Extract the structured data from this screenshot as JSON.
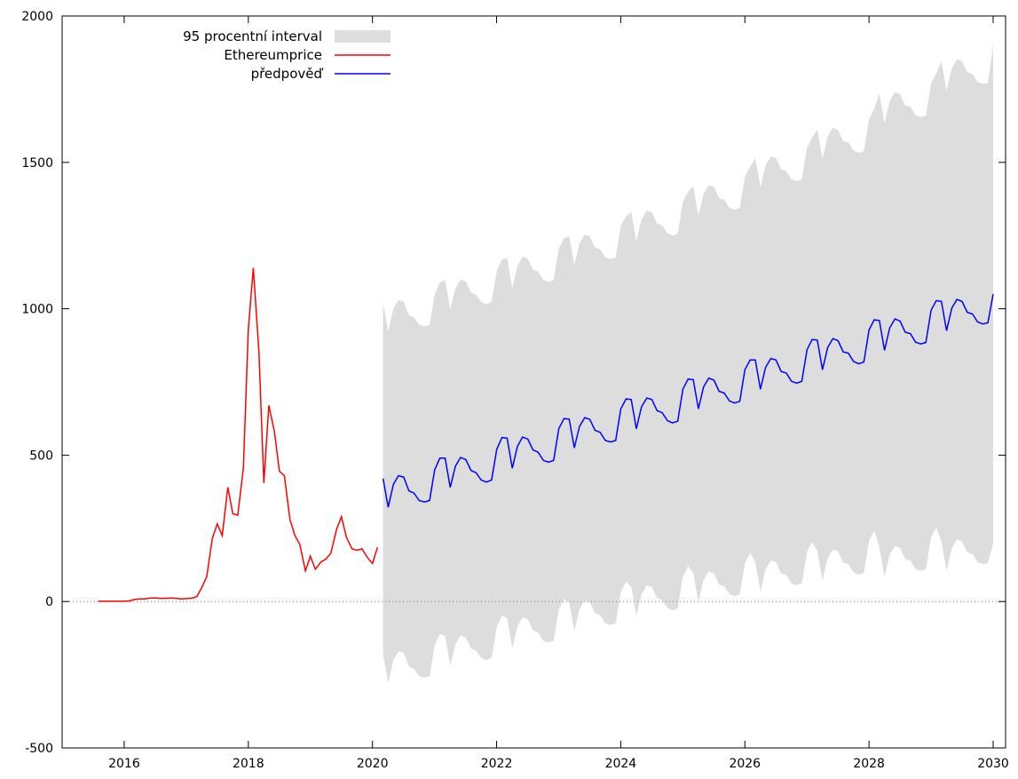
{
  "chart_data": {
    "type": "line",
    "title": "",
    "xlabel": "",
    "ylabel": "",
    "xlim": [
      2015.0,
      2030.2
    ],
    "ylim": [
      -500,
      2000
    ],
    "x_ticks": [
      2016,
      2018,
      2020,
      2022,
      2024,
      2026,
      2028,
      2030
    ],
    "y_ticks": [
      -500,
      0,
      500,
      1000,
      1500,
      2000
    ],
    "zero_line": true,
    "grid": false,
    "legend_position": "top-left",
    "legend": [
      {
        "label": "95 procentní interval",
        "kind": "band",
        "color": "#dddddd"
      },
      {
        "label": "Ethereumprice",
        "kind": "line",
        "color": "#ff0000"
      },
      {
        "label": "předpověď",
        "kind": "line",
        "color": "#0000ff"
      }
    ],
    "series": [
      {
        "name": "Ethereumprice",
        "color": "#ff0000",
        "points": [
          [
            2015.58,
            1
          ],
          [
            2015.75,
            1
          ],
          [
            2015.92,
            1
          ],
          [
            2016.0,
            1
          ],
          [
            2016.08,
            2
          ],
          [
            2016.17,
            7
          ],
          [
            2016.25,
            9
          ],
          [
            2016.33,
            9
          ],
          [
            2016.42,
            12
          ],
          [
            2016.5,
            12
          ],
          [
            2016.58,
            11
          ],
          [
            2016.67,
            11
          ],
          [
            2016.75,
            12
          ],
          [
            2016.83,
            11
          ],
          [
            2016.92,
            9
          ],
          [
            2017.0,
            10
          ],
          [
            2017.08,
            11
          ],
          [
            2017.17,
            17
          ],
          [
            2017.25,
            48
          ],
          [
            2017.33,
            85
          ],
          [
            2017.42,
            215
          ],
          [
            2017.5,
            265
          ],
          [
            2017.58,
            225
          ],
          [
            2017.67,
            390
          ],
          [
            2017.75,
            300
          ],
          [
            2017.83,
            295
          ],
          [
            2017.92,
            455
          ],
          [
            2018.0,
            930
          ],
          [
            2018.08,
            1140
          ],
          [
            2018.17,
            855
          ],
          [
            2018.25,
            405
          ],
          [
            2018.33,
            670
          ],
          [
            2018.42,
            580
          ],
          [
            2018.5,
            445
          ],
          [
            2018.58,
            430
          ],
          [
            2018.67,
            280
          ],
          [
            2018.75,
            225
          ],
          [
            2018.83,
            195
          ],
          [
            2018.92,
            105
          ],
          [
            2019.0,
            155
          ],
          [
            2019.08,
            110
          ],
          [
            2019.17,
            135
          ],
          [
            2019.25,
            145
          ],
          [
            2019.33,
            165
          ],
          [
            2019.42,
            245
          ],
          [
            2019.5,
            290
          ],
          [
            2019.58,
            220
          ],
          [
            2019.67,
            180
          ],
          [
            2019.75,
            175
          ],
          [
            2019.83,
            180
          ],
          [
            2019.92,
            150
          ],
          [
            2020.0,
            130
          ],
          [
            2020.08,
            185
          ]
        ]
      },
      {
        "name": "předpověď",
        "color": "#0000ff",
        "start": 2020.17,
        "step": 0.0833,
        "values": [
          420,
          322,
          400,
          430,
          425,
          378,
          370,
          345,
          340,
          345,
          450,
          490,
          490,
          390,
          462,
          492,
          485,
          448,
          440,
          415,
          408,
          415,
          520,
          560,
          558,
          455,
          530,
          562,
          555,
          518,
          510,
          482,
          476,
          482,
          590,
          625,
          623,
          525,
          598,
          628,
          622,
          585,
          578,
          550,
          545,
          550,
          658,
          692,
          690,
          590,
          665,
          695,
          690,
          652,
          645,
          618,
          610,
          616,
          725,
          760,
          758,
          658,
          733,
          763,
          756,
          718,
          712,
          685,
          678,
          684,
          792,
          825,
          825,
          725,
          800,
          830,
          825,
          786,
          780,
          752,
          746,
          752,
          860,
          895,
          893,
          792,
          868,
          898,
          891,
          853,
          848,
          820,
          812,
          818,
          928,
          962,
          960,
          858,
          935,
          965,
          958,
          920,
          915,
          886,
          880,
          885,
          995,
          1028,
          1025,
          925,
          1002,
          1032,
          1025,
          988,
          982,
          955,
          948,
          952,
          1050
        ]
      }
    ],
    "interval": {
      "name": "95 procentní interval",
      "color": "#dddddd",
      "start": 2020.17,
      "step": 0.0833,
      "half_width": [
        600,
        600,
        600,
        600,
        600,
        600,
        600,
        600,
        600,
        600,
        600,
        600,
        608,
        608,
        608,
        608,
        608,
        608,
        608,
        608,
        608,
        608,
        608,
        608,
        616,
        616,
        616,
        616,
        616,
        616,
        616,
        616,
        616,
        616,
        616,
        616,
        625,
        625,
        625,
        625,
        625,
        625,
        625,
        625,
        625,
        625,
        625,
        625,
        640,
        640,
        640,
        640,
        640,
        640,
        640,
        640,
        640,
        640,
        640,
        640,
        660,
        660,
        660,
        660,
        660,
        660,
        660,
        660,
        660,
        660,
        660,
        660,
        690,
        690,
        690,
        690,
        690,
        690,
        690,
        690,
        690,
        690,
        690,
        690,
        720,
        720,
        720,
        720,
        720,
        720,
        720,
        720,
        720,
        720,
        720,
        720,
        775,
        775,
        775,
        775,
        775,
        775,
        775,
        775,
        775,
        775,
        775,
        775,
        820,
        820,
        820,
        820,
        820,
        820,
        820,
        820,
        820,
        820,
        850
      ]
    }
  }
}
